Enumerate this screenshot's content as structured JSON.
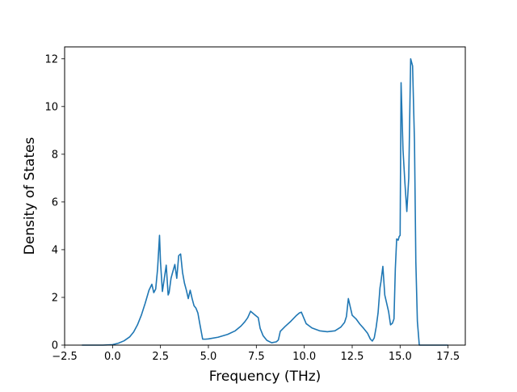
{
  "chart_data": {
    "type": "line",
    "title": "",
    "xlabel": "Frequency (THz)",
    "ylabel": "Density of States",
    "xlim": [
      -2.5,
      18.4
    ],
    "ylim": [
      0,
      12.5
    ],
    "grid": false,
    "x_ticks": [
      -2.5,
      0.0,
      2.5,
      5.0,
      7.5,
      10.0,
      12.5,
      15.0,
      17.5
    ],
    "x_tick_labels": [
      "−2.5",
      "0.0",
      "2.5",
      "5.0",
      "7.5",
      "10.0",
      "12.5",
      "15.0",
      "17.5"
    ],
    "y_ticks": [
      0,
      2,
      4,
      6,
      8,
      10,
      12
    ],
    "y_tick_labels": [
      "0",
      "2",
      "4",
      "6",
      "8",
      "10",
      "12"
    ],
    "line_color": "#1f77b4",
    "series": [
      {
        "x": [
          -1.6,
          -0.5,
          0.0,
          0.3,
          0.6,
          0.9,
          1.1,
          1.3,
          1.5,
          1.7,
          1.9,
          2.05,
          2.15,
          2.25,
          2.35,
          2.45,
          2.5,
          2.6,
          2.7,
          2.8,
          2.9,
          2.95,
          3.05,
          3.15,
          3.25,
          3.35,
          3.45,
          3.55,
          3.65,
          3.75,
          3.85,
          3.95,
          4.05,
          4.15,
          4.25,
          4.35,
          4.45,
          4.55,
          4.7,
          4.85,
          5.0,
          5.5,
          6.0,
          6.4,
          6.7,
          6.9,
          7.05,
          7.2,
          7.45,
          7.6,
          7.7,
          7.85,
          8.05,
          8.3,
          8.55,
          8.65,
          8.75,
          9.0,
          9.3,
          9.6,
          9.75,
          9.85,
          10.1,
          10.4,
          10.8,
          11.2,
          11.6,
          11.9,
          12.1,
          12.2,
          12.3,
          12.4,
          12.5,
          12.7,
          12.9,
          13.1,
          13.3,
          13.45,
          13.55,
          13.65,
          13.75,
          13.85,
          13.95,
          14.0,
          14.1,
          14.2,
          14.3,
          14.4,
          14.5,
          14.6,
          14.68,
          14.75,
          14.82,
          14.9,
          14.95,
          15.0,
          15.05,
          15.15,
          15.25,
          15.35,
          15.45,
          15.55,
          15.65,
          15.75,
          15.82,
          15.9,
          16.0,
          17.5
        ],
        "y": [
          0.0,
          0.0,
          0.02,
          0.08,
          0.18,
          0.35,
          0.55,
          0.85,
          1.25,
          1.75,
          2.3,
          2.55,
          2.2,
          2.35,
          3.2,
          4.6,
          3.5,
          2.25,
          2.8,
          3.35,
          2.1,
          2.2,
          2.8,
          3.1,
          3.38,
          2.8,
          3.75,
          3.82,
          3.05,
          2.6,
          2.3,
          1.95,
          2.3,
          1.95,
          1.65,
          1.55,
          1.35,
          0.9,
          0.25,
          0.25,
          0.26,
          0.33,
          0.45,
          0.6,
          0.8,
          0.98,
          1.15,
          1.42,
          1.25,
          1.15,
          0.7,
          0.4,
          0.2,
          0.1,
          0.14,
          0.22,
          0.58,
          0.78,
          1.0,
          1.25,
          1.35,
          1.38,
          0.9,
          0.72,
          0.6,
          0.56,
          0.6,
          0.75,
          0.95,
          1.2,
          1.95,
          1.6,
          1.25,
          1.1,
          0.88,
          0.7,
          0.5,
          0.25,
          0.17,
          0.3,
          0.75,
          1.35,
          2.4,
          2.65,
          3.3,
          2.1,
          1.75,
          1.4,
          0.85,
          0.92,
          1.1,
          3.2,
          4.45,
          4.4,
          4.55,
          4.6,
          11.0,
          8.2,
          6.8,
          5.6,
          7.0,
          12.0,
          11.7,
          8.5,
          3.5,
          1.0,
          0.0,
          0.0
        ]
      }
    ]
  }
}
